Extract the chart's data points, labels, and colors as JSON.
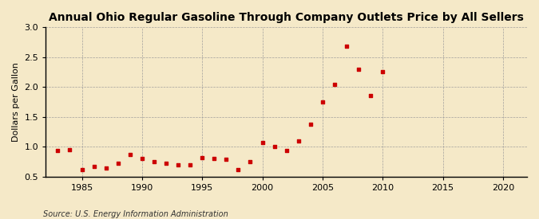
{
  "title": "Annual Ohio Regular Gasoline Through Company Outlets Price by All Sellers",
  "ylabel": "Dollars per Gallon",
  "source": "Source: U.S. Energy Information Administration",
  "background_color": "#f5e9c8",
  "marker_color": "#cc0000",
  "xlim": [
    1982,
    2022
  ],
  "ylim": [
    0.5,
    3.0
  ],
  "xticks": [
    1985,
    1990,
    1995,
    2000,
    2005,
    2010,
    2015,
    2020
  ],
  "yticks": [
    0.5,
    1.0,
    1.5,
    2.0,
    2.5,
    3.0
  ],
  "years": [
    1983,
    1984,
    1985,
    1986,
    1987,
    1988,
    1989,
    1990,
    1991,
    1992,
    1993,
    1994,
    1995,
    1996,
    1997,
    1998,
    1999,
    2000,
    2001,
    2002,
    2003,
    2004,
    2005,
    2006,
    2007,
    2008,
    2009,
    2010
  ],
  "prices": [
    0.94,
    0.95,
    0.62,
    0.67,
    0.64,
    0.72,
    0.87,
    0.8,
    0.75,
    0.72,
    0.69,
    0.69,
    0.81,
    0.8,
    0.79,
    0.62,
    0.75,
    1.07,
    1.0,
    0.93,
    1.1,
    1.38,
    1.75,
    2.04,
    2.68,
    2.3,
    1.86,
    2.26
  ],
  "title_fontsize": 10,
  "ylabel_fontsize": 8,
  "tick_fontsize": 8,
  "source_fontsize": 7
}
